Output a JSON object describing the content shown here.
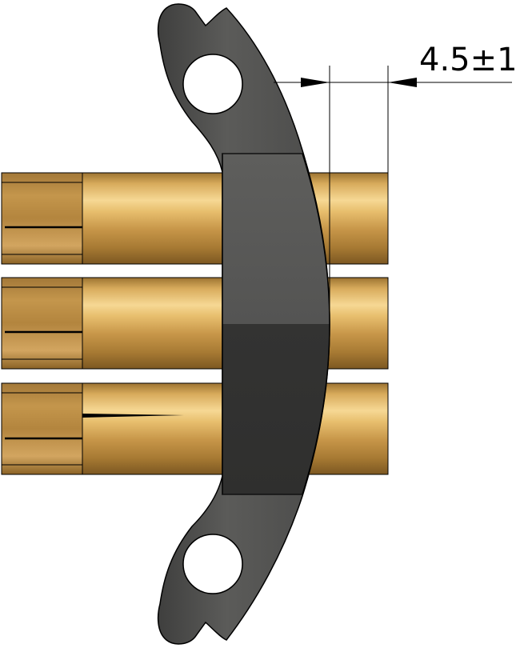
{
  "dimension": {
    "text": "4.5±1"
  },
  "colors": {
    "background": "#ffffff",
    "outline": "#000000",
    "bracket_light": "#5a5a58",
    "bracket_dark": "#323231",
    "brass_light": "#f3cf84",
    "brass_mid": "#c99a4b",
    "brass_dark": "#8a6326"
  },
  "parts": [
    {
      "name": "brass-pin",
      "count": 3
    },
    {
      "name": "clamp-bracket",
      "count": 1
    },
    {
      "name": "mounting-hole",
      "count": 2
    }
  ]
}
